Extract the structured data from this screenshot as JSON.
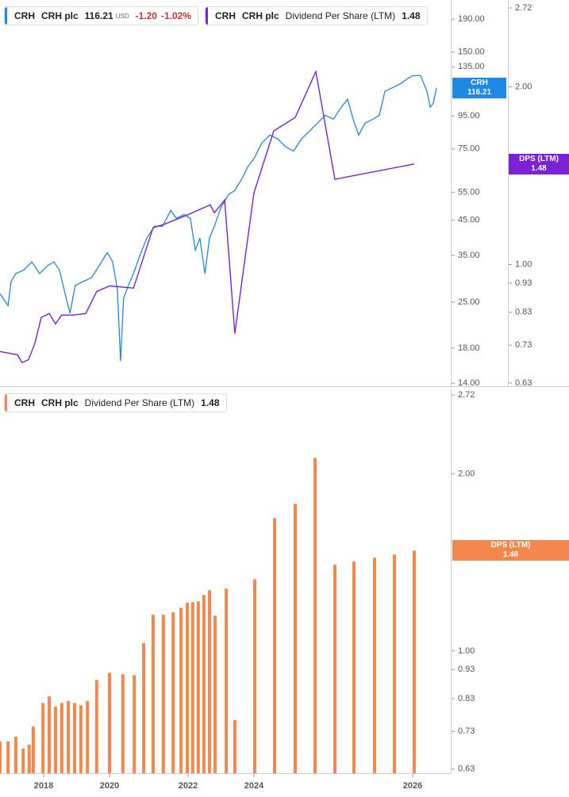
{
  "chart_data": [
    {
      "type": "line",
      "log": true,
      "legend_price": {
        "ticker": "CRH",
        "company": "CRH plc",
        "currency": "USD",
        "change": "-1.20",
        "change_pct": "-1.02%"
      },
      "legend_dps": {
        "ticker": "CRH",
        "company": "CRH plc"
      },
      "xlim": [
        2016.7,
        2026.45
      ],
      "ylim": [
        13.7,
        218
      ],
      "y2lim": [
        0.622,
        2.806
      ],
      "yticks": [
        {
          "value": 190,
          "label": "190.00"
        },
        {
          "value": 150,
          "label": "150.00"
        },
        {
          "value": 135,
          "label": "135.00"
        },
        {
          "value": 95,
          "label": "95.00"
        },
        {
          "value": 75,
          "label": "75.00"
        },
        {
          "value": 55,
          "label": "55.00"
        },
        {
          "value": 45,
          "label": "45.00"
        },
        {
          "value": 35,
          "label": "35.00"
        },
        {
          "value": 25,
          "label": "25.00"
        },
        {
          "value": 18,
          "label": "18.00"
        },
        {
          "value": 14,
          "label": "14.00"
        }
      ],
      "y2ticks": [
        2.72,
        {
          "value": 2,
          "label": "2.00"
        },
        {
          "value": 1,
          "label": "1.00"
        },
        0.93,
        0.83,
        0.73,
        0.63
      ],
      "series": [
        {
          "name": "CRH plc",
          "badge": "CRH",
          "color": "#1e88e5",
          "x": [
            2016.7,
            2016.94,
            2017.03,
            2017.17,
            2017.41,
            2017.65,
            2017.88,
            2018.12,
            2018.31,
            2018.48,
            2018.65,
            2018.8,
            2018.96,
            2019.2,
            2019.45,
            2019.69,
            2019.93,
            2020.08,
            2020.2,
            2020.28,
            2020.36,
            2020.48,
            2020.61,
            2020.75,
            2020.95,
            2021.15,
            2021.35,
            2021.56,
            2021.7,
            2021.9,
            2022.07,
            2022.22,
            2022.36,
            2022.51,
            2022.65,
            2022.8,
            2022.99,
            2023.23,
            2023.42,
            2023.64,
            2023.81,
            2024.0,
            2024.1,
            2024.2,
            2024.3,
            2024.4,
            2024.5,
            2024.6,
            2024.7,
            2024.8,
            2024.9,
            2025.0,
            2025.1,
            2025.18,
            2025.25,
            2025.32,
            2025.4,
            2025.5,
            2025.58,
            2025.65,
            2025.75,
            2025.85,
            2025.92,
            2026.0,
            2026.1,
            2026.18,
            2026.22,
            2026.26,
            2026.3
          ],
          "values": [
            26.6,
            24.4,
            29.0,
            30.7,
            31.5,
            33.4,
            30.7,
            32.5,
            33.4,
            31.5,
            26.6,
            23.1,
            28.2,
            29.0,
            29.8,
            32.5,
            35.7,
            33.4,
            27.4,
            16.4,
            25.8,
            28.2,
            30.7,
            34.3,
            39.6,
            43.1,
            43.1,
            48.3,
            45.6,
            46.9,
            45.6,
            36.3,
            39.6,
            30.7,
            39.6,
            43.1,
            49.1,
            54.1,
            55.7,
            60.7,
            66.0,
            69.9,
            78.3,
            82.8,
            80.6,
            76.1,
            73.9,
            80.6,
            85.2,
            90.2,
            95.5,
            92.8,
            101.1,
            107.0,
            92.8,
            82.8,
            90.2,
            92.8,
            95.5,
            113.3,
            116.5,
            119.8,
            123.3,
            126.8,
            126.8,
            113.3,
            101.1,
            104.0,
            116.21
          ]
        },
        {
          "name": "Dividend Per Share (LTM)",
          "badge": "DPS (LTM)",
          "color": "#7b22d6",
          "axis": "y2",
          "x": [
            2016.7,
            2017.22,
            2017.36,
            2017.55,
            2017.74,
            2017.93,
            2018.17,
            2018.36,
            2018.55,
            2018.89,
            2019.28,
            2019.61,
            2020.0,
            2020.61,
            2021.11,
            2021.37,
            2022.02,
            2022.67,
            2022.8,
            2023.11,
            2023.42,
            2024.0,
            2024.25,
            2024.52,
            2024.78,
            2025.02,
            2026.02
          ],
          "values": [
            0.712,
            0.703,
            0.682,
            0.69,
            0.736,
            0.813,
            0.826,
            0.793,
            0.821,
            0.821,
            0.826,
            0.9,
            0.92,
            0.912,
            1.154,
            1.168,
            1.216,
            1.262,
            1.224,
            1.286,
            0.764,
            1.322,
            1.684,
            1.774,
            2.123,
            1.394,
            1.48
          ]
        }
      ]
    },
    {
      "type": "bar",
      "log": true,
      "legend": {
        "ticker": "CRH",
        "company": "CRH plc"
      },
      "name": "Dividend Per Share (LTM)",
      "badge": "DPS (LTM)",
      "color": "#f4874b",
      "xlim": [
        2016.7,
        2026.45
      ],
      "xticks": [
        2018,
        2020,
        2022,
        2024,
        2026
      ],
      "ylim": [
        0.62,
        2.79
      ],
      "yticks": [
        2.72,
        {
          "value": 2,
          "label": "2.00"
        },
        {
          "value": 1,
          "label": "1.00"
        },
        0.93,
        0.83,
        0.73,
        0.63
      ],
      "x": [
        2016.7,
        2016.94,
        2017.17,
        2017.39,
        2017.57,
        2017.69,
        2017.98,
        2018.17,
        2018.36,
        2018.55,
        2018.75,
        2018.94,
        2019.13,
        2019.33,
        2019.61,
        2020.0,
        2020.34,
        2020.63,
        2020.87,
        2021.11,
        2021.37,
        2021.62,
        2021.82,
        2021.98,
        2022.14,
        2022.31,
        2022.48,
        2022.65,
        2022.82,
        2023.16,
        2023.42,
        2024.01,
        2024.26,
        2024.52,
        2024.77,
        2025.02,
        2025.26,
        2025.52,
        2025.77,
        2026.02
      ],
      "values": [
        0.702,
        0.702,
        0.715,
        0.683,
        0.693,
        0.744,
        0.816,
        0.837,
        0.804,
        0.816,
        0.822,
        0.816,
        0.809,
        0.822,
        0.893,
        0.918,
        0.913,
        0.91,
        1.031,
        1.152,
        1.152,
        1.163,
        1.184,
        1.207,
        1.21,
        1.214,
        1.245,
        1.268,
        1.148,
        1.276,
        0.763,
        1.324,
        1.681,
        1.777,
        2.127,
        1.401,
        1.418,
        1.44,
        1.458,
        1.48
      ]
    }
  ]
}
